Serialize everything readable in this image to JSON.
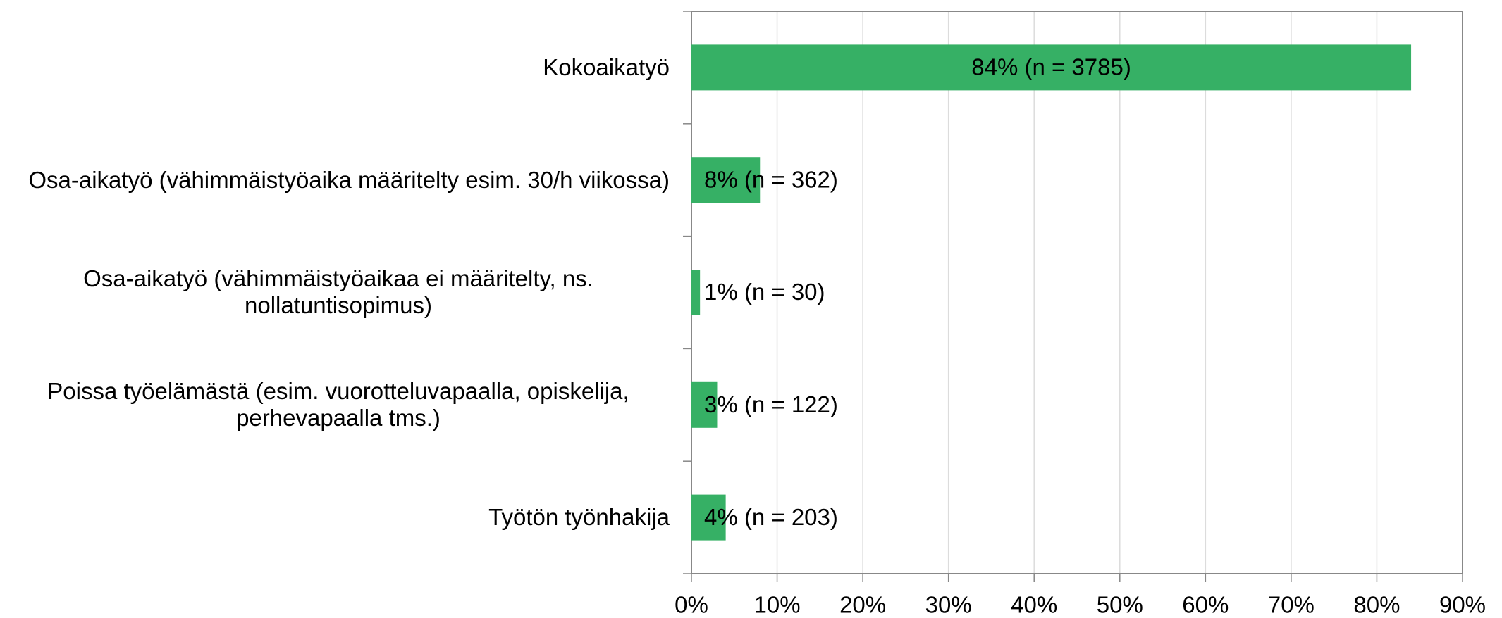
{
  "chart_data": {
    "type": "bar",
    "orientation": "horizontal",
    "categories": [
      "Kokoaikatyö",
      "Osa-aikatyö (vähimmäistyöaika määritelty esim. 30/h viikossa)",
      "Osa-aikatyö (vähimmäistyöaikaa ei määritelty, ns. nollatuntisopimus)",
      "Poissa työelämästä (esim. vuorotteluvapaalla, opiskelija, perhevapaalla tms.)",
      "Työtön työnhakija"
    ],
    "values": [
      84,
      8,
      1,
      3,
      4
    ],
    "value_labels": [
      "84% (n = 3785)",
      "8% (n = 362)",
      "1% (n = 30)",
      "3% (n = 122)",
      "4% (n = 203)"
    ],
    "color": "#36b065",
    "xlim": [
      0,
      90
    ],
    "xticks": [
      {
        "value": 0,
        "label": "0%"
      },
      {
        "value": 10,
        "label": "10%"
      },
      {
        "value": 20,
        "label": "20%"
      },
      {
        "value": 30,
        "label": "30%"
      },
      {
        "value": 40,
        "label": "40%"
      },
      {
        "value": 50,
        "label": "50%"
      },
      {
        "value": 60,
        "label": "60%"
      },
      {
        "value": 70,
        "label": "70%"
      },
      {
        "value": 80,
        "label": "80%"
      },
      {
        "value": 90,
        "label": "90%"
      }
    ],
    "grid": true
  }
}
